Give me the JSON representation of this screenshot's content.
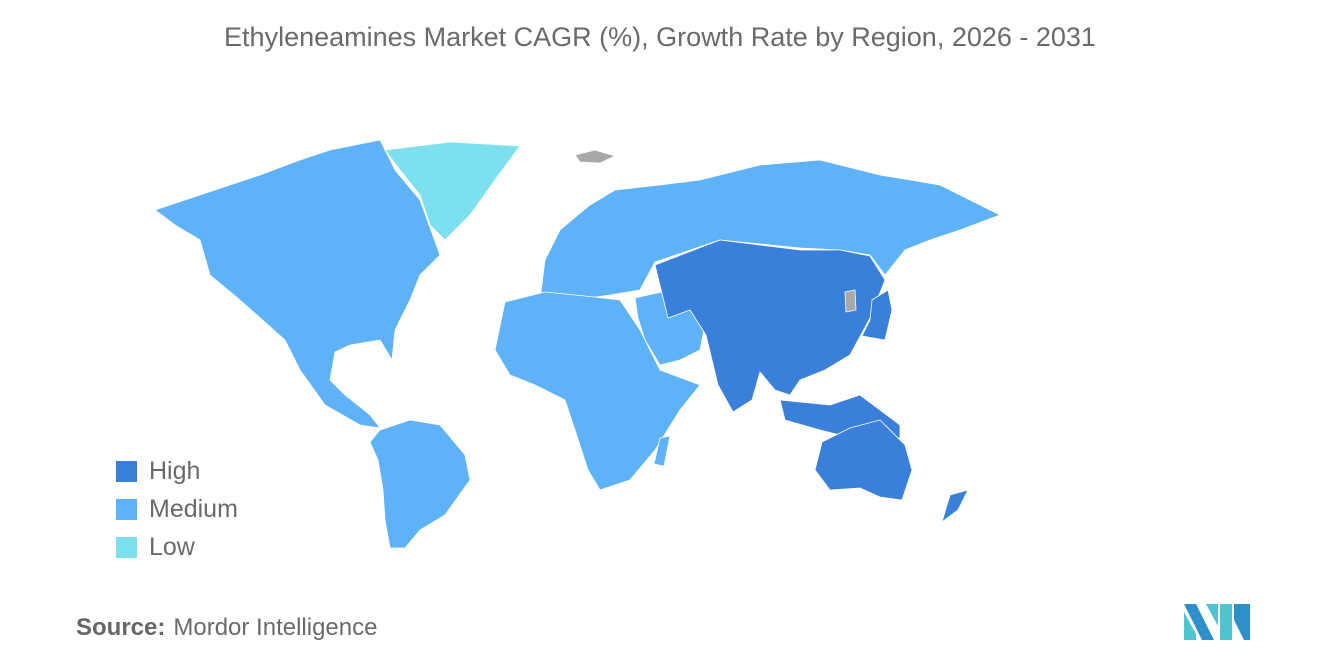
{
  "title": "Ethyleneamines Market CAGR (%), Growth Rate by Region, 2026 - 2031",
  "legend": [
    {
      "label": "High",
      "color": "#3a7fd9"
    },
    {
      "label": "Medium",
      "color": "#5eb2f7"
    },
    {
      "label": "Low",
      "color": "#7de0ee"
    }
  ],
  "regions": {
    "high": [
      "China",
      "India",
      "Central Asia",
      "Southeast Asia",
      "Japan",
      "Australia",
      "New Zealand"
    ],
    "medium": [
      "North America",
      "South America",
      "Europe",
      "Russia",
      "Middle East",
      "Africa"
    ],
    "low": [
      "Greenland"
    ],
    "no_data_color": "#a8a8a8"
  },
  "source": {
    "label": "Source:",
    "value": "Mordor Intelligence"
  }
}
